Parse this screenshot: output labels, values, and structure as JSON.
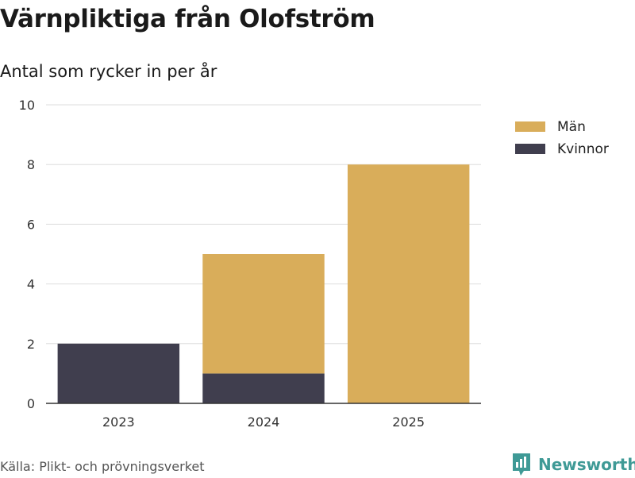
{
  "title": "Värnpliktiga från Olofström",
  "subtitle": "Antal som rycker in per år",
  "source": "Källa: Plikt- och prövningsverket",
  "brand": "Newsworthy",
  "colors": {
    "man": "#d9ad5a",
    "kvinnor": "#403e4e",
    "grid": "#dddddd",
    "axis": "#333333",
    "brand": "#3f9a96"
  },
  "chart_data": {
    "type": "bar",
    "stacked": true,
    "categories": [
      "2023",
      "2024",
      "2025"
    ],
    "series": [
      {
        "name": "Kvinnor",
        "values": [
          2,
          1,
          0
        ],
        "color": "#403e4e"
      },
      {
        "name": "Män",
        "values": [
          0,
          4,
          8
        ],
        "color": "#d9ad5a"
      }
    ],
    "legend": [
      "Män",
      "Kvinnor"
    ],
    "ylim": [
      0,
      10
    ],
    "yticks": [
      "0",
      "2",
      "4",
      "6",
      "8",
      "10"
    ],
    "grid": true,
    "legend_position": "top-right",
    "xlabel": "",
    "ylabel": ""
  }
}
